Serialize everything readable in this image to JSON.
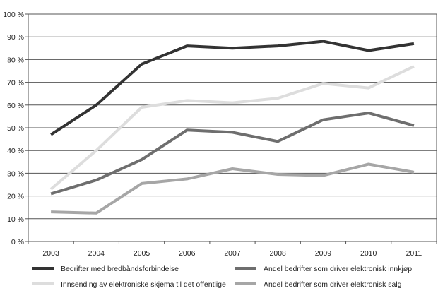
{
  "chart_data": {
    "type": "line",
    "title": "",
    "xlabel": "",
    "ylabel": "",
    "ylim": [
      0,
      100
    ],
    "y_ticks": [
      "0 %",
      "10 %",
      "20 %",
      "30 %",
      "40 %",
      "50 %",
      "60 %",
      "70 %",
      "80 %",
      "90 %",
      "100 %"
    ],
    "grid": "horizontal",
    "legend_position": "bottom",
    "categories": [
      "2003",
      "2004",
      "2005",
      "2006",
      "2007",
      "2008",
      "2009",
      "2010",
      "2011"
    ],
    "series": [
      {
        "name": "Bedrifter med bredbåndsforbindelse",
        "color": "#333333",
        "values": [
          47,
          60,
          78,
          86,
          85,
          86,
          88,
          84,
          87
        ]
      },
      {
        "name": "Andel bedrifter som driver elektronisk innkjøp",
        "color": "#6e6e6e",
        "values": [
          21,
          27,
          36,
          49,
          48,
          44,
          53.5,
          56.5,
          51
        ]
      },
      {
        "name": "Innsending av elektroniske skjema til det offentlige",
        "color": "#dddddd",
        "values": [
          23,
          40,
          59,
          62,
          61,
          63,
          69.5,
          67.5,
          77
        ]
      },
      {
        "name": "Andel bedrifter som driver elektronisk salg",
        "color": "#a6a6a6",
        "values": [
          13,
          12.5,
          25.5,
          27.5,
          32,
          29.5,
          29,
          34,
          30.5
        ]
      }
    ]
  }
}
